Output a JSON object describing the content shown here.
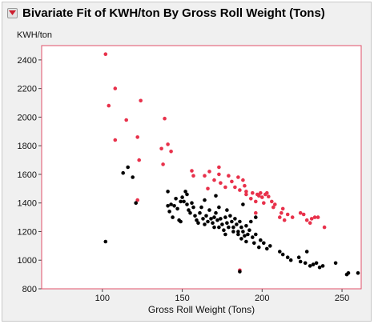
{
  "window": {
    "title": "Bivariate Fit of KWH/ton By Gross Roll Weight (Tons)",
    "disclosure_icon": "disclosure-triangle-icon"
  },
  "colors": {
    "series_black": "#000000",
    "series_red": "#e8314b",
    "frame": "#e0506a",
    "panel_bg": "#f0f0f0",
    "title_icon": "#cc1f2f"
  },
  "chart_data": {
    "type": "scatter",
    "title": "",
    "xlabel": "Gross Roll Weight (Tons)",
    "ylabel": "KWH/ton",
    "xlim": [
      62,
      262
    ],
    "ylim": [
      800,
      2500
    ],
    "xticks": [
      100,
      150,
      200,
      250
    ],
    "yticks": [
      800,
      1000,
      1200,
      1400,
      1600,
      1800,
      2000,
      2200,
      2400
    ],
    "grid": false,
    "legend": "none",
    "series": [
      {
        "color": "#e8314b",
        "points": [
          [
            102,
            2440
          ],
          [
            104,
            2080
          ],
          [
            108,
            2200
          ],
          [
            108,
            1840
          ],
          [
            115,
            1980
          ],
          [
            122,
            1860
          ],
          [
            123,
            1700
          ],
          [
            124,
            2115
          ],
          [
            122,
            1420
          ],
          [
            137,
            1780
          ],
          [
            138,
            1670
          ],
          [
            139,
            1990
          ],
          [
            141,
            1810
          ],
          [
            143,
            1760
          ],
          [
            156,
            1625
          ],
          [
            157,
            1590
          ],
          [
            164,
            1590
          ],
          [
            166,
            1500
          ],
          [
            167,
            1620
          ],
          [
            170,
            1560
          ],
          [
            173,
            1650
          ],
          [
            173,
            1600
          ],
          [
            174,
            1540
          ],
          [
            177,
            1510
          ],
          [
            179,
            1590
          ],
          [
            181,
            1550
          ],
          [
            183,
            1510
          ],
          [
            185,
            1580
          ],
          [
            186,
            1490
          ],
          [
            188,
            1560
          ],
          [
            189,
            1520
          ],
          [
            190,
            1460
          ],
          [
            190,
            1480
          ],
          [
            193,
            1430
          ],
          [
            194,
            1470
          ],
          [
            196,
            1410
          ],
          [
            197,
            1460
          ],
          [
            198,
            1450
          ],
          [
            199,
            1470
          ],
          [
            200,
            1440
          ],
          [
            201,
            1400
          ],
          [
            202,
            1460
          ],
          [
            203,
            1470
          ],
          [
            204,
            1445
          ],
          [
            206,
            1410
          ],
          [
            208,
            1390
          ],
          [
            211,
            1300
          ],
          [
            212,
            1330
          ],
          [
            213,
            1360
          ],
          [
            214,
            1280
          ],
          [
            216,
            1320
          ],
          [
            219,
            1300
          ],
          [
            224,
            1330
          ],
          [
            226,
            1320
          ],
          [
            228,
            1280
          ],
          [
            230,
            1260
          ],
          [
            231,
            1290
          ],
          [
            233,
            1300
          ],
          [
            235,
            1300
          ],
          [
            239,
            1230
          ],
          [
            196,
            1330
          ],
          [
            207,
            1370
          ],
          [
            186,
            930
          ]
        ]
      },
      {
        "color": "#000000",
        "points": [
          [
            102,
            1130
          ],
          [
            113,
            1610
          ],
          [
            116,
            1650
          ],
          [
            119,
            1580
          ],
          [
            141,
            1480
          ],
          [
            141,
            1380
          ],
          [
            142,
            1340
          ],
          [
            143,
            1390
          ],
          [
            144,
            1300
          ],
          [
            145,
            1380
          ],
          [
            146,
            1430
          ],
          [
            147,
            1360
          ],
          [
            148,
            1280
          ],
          [
            149,
            1270
          ],
          [
            149,
            1410
          ],
          [
            150,
            1440
          ],
          [
            151,
            1410
          ],
          [
            152,
            1480
          ],
          [
            153,
            1460
          ],
          [
            153,
            1390
          ],
          [
            154,
            1350
          ],
          [
            155,
            1330
          ],
          [
            156,
            1400
          ],
          [
            157,
            1370
          ],
          [
            158,
            1310
          ],
          [
            159,
            1280
          ],
          [
            160,
            1260
          ],
          [
            161,
            1330
          ],
          [
            162,
            1370
          ],
          [
            163,
            1290
          ],
          [
            164,
            1250
          ],
          [
            165,
            1310
          ],
          [
            166,
            1270
          ],
          [
            167,
            1350
          ],
          [
            168,
            1290
          ],
          [
            169,
            1260
          ],
          [
            170,
            1300
          ],
          [
            170,
            1230
          ],
          [
            171,
            1330
          ],
          [
            172,
            1280
          ],
          [
            173,
            1230
          ],
          [
            173,
            1370
          ],
          [
            174,
            1290
          ],
          [
            175,
            1250
          ],
          [
            176,
            1210
          ],
          [
            177,
            1300
          ],
          [
            177,
            1180
          ],
          [
            178,
            1260
          ],
          [
            179,
            1230
          ],
          [
            180,
            1310
          ],
          [
            181,
            1270
          ],
          [
            182,
            1200
          ],
          [
            182,
            1230
          ],
          [
            183,
            1290
          ],
          [
            184,
            1250
          ],
          [
            185,
            1200
          ],
          [
            185,
            1180
          ],
          [
            186,
            1270
          ],
          [
            187,
            1230
          ],
          [
            187,
            1150
          ],
          [
            188,
            1200
          ],
          [
            189,
            1170
          ],
          [
            190,
            1240
          ],
          [
            190,
            1130
          ],
          [
            191,
            1180
          ],
          [
            192,
            1210
          ],
          [
            193,
            1270
          ],
          [
            194,
            1160
          ],
          [
            195,
            1120
          ],
          [
            196,
            1180
          ],
          [
            198,
            1090
          ],
          [
            199,
            1140
          ],
          [
            201,
            1120
          ],
          [
            203,
            1080
          ],
          [
            205,
            1100
          ],
          [
            211,
            1060
          ],
          [
            213,
            1040
          ],
          [
            216,
            1020
          ],
          [
            218,
            1000
          ],
          [
            223,
            1020
          ],
          [
            224,
            990
          ],
          [
            227,
            980
          ],
          [
            228,
            1060
          ],
          [
            230,
            960
          ],
          [
            232,
            970
          ],
          [
            234,
            980
          ],
          [
            236,
            950
          ],
          [
            238,
            960
          ],
          [
            246,
            980
          ],
          [
            253,
            900
          ],
          [
            254,
            910
          ],
          [
            260,
            910
          ],
          [
            186,
            920
          ],
          [
            121,
            1400
          ],
          [
            164,
            1420
          ],
          [
            171,
            1450
          ],
          [
            188,
            1390
          ],
          [
            178,
            1350
          ],
          [
            196,
            1300
          ]
        ]
      }
    ]
  }
}
